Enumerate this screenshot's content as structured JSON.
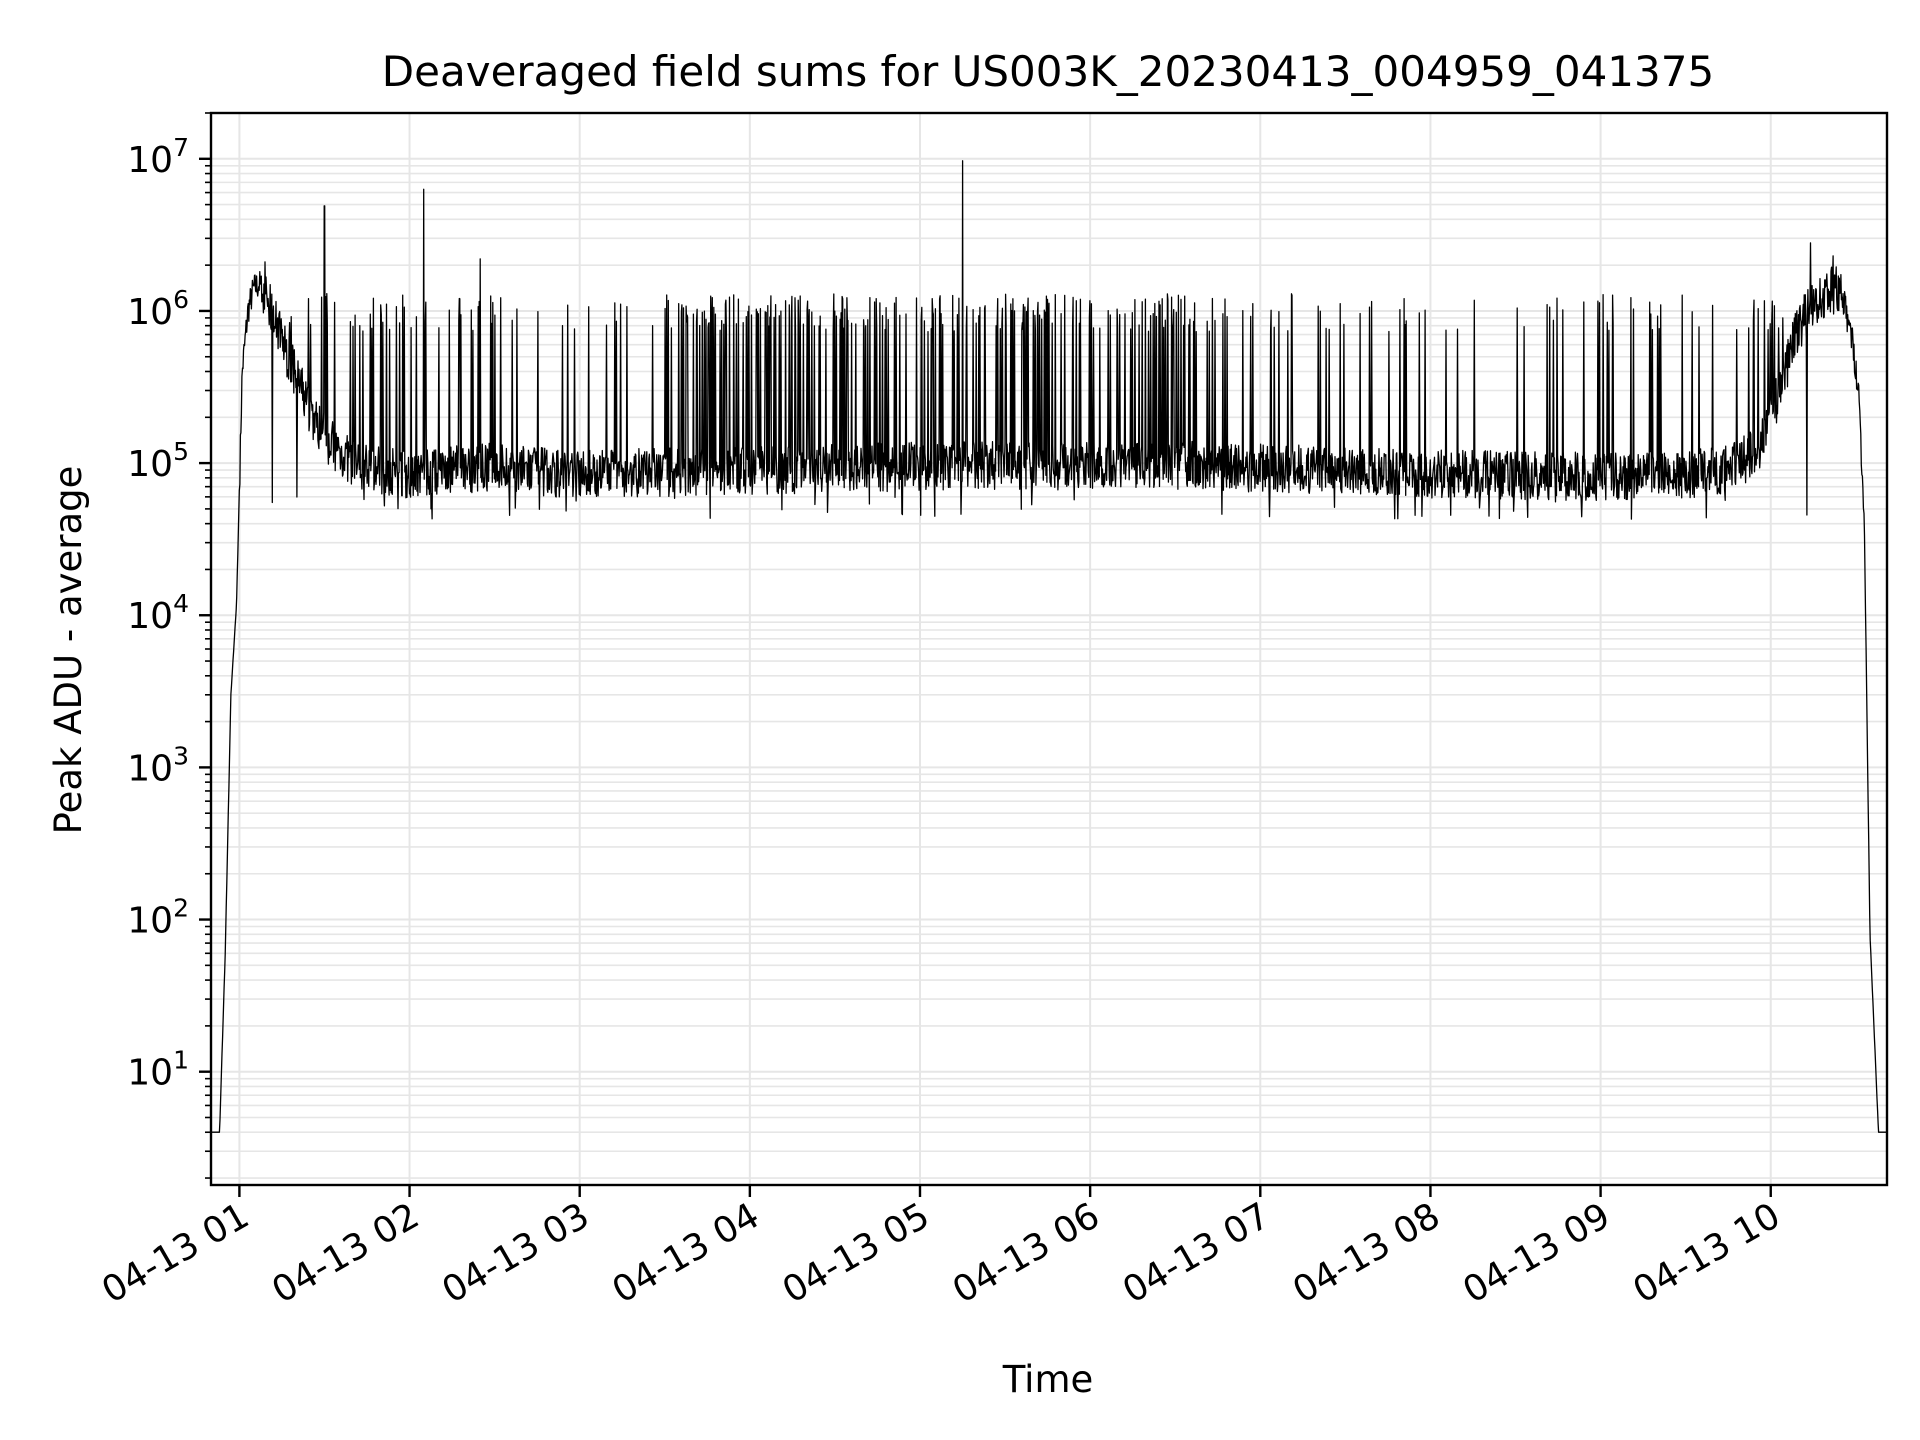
{
  "chart_data": {
    "type": "line",
    "title": "Deaveraged field sums for US003K_20230413_004959_041375",
    "xlabel": "Time",
    "ylabel": "Peak ADU - average",
    "y_scale": "log",
    "ylim": [
      1.8,
      20000000
    ],
    "xlim": [
      "04-13 00:49:59",
      "04-13 10:41:00"
    ],
    "grid": true,
    "x_ticks": [
      "04-13 01",
      "04-13 02",
      "04-13 03",
      "04-13 04",
      "04-13 05",
      "04-13 06",
      "04-13 07",
      "04-13 08",
      "04-13 09",
      "04-13 10"
    ],
    "y_ticks": [
      {
        "base": "10",
        "exp": "1"
      },
      {
        "base": "10",
        "exp": "2"
      },
      {
        "base": "10",
        "exp": "3"
      },
      {
        "base": "10",
        "exp": "4"
      },
      {
        "base": "10",
        "exp": "5"
      },
      {
        "base": "10",
        "exp": "6"
      },
      {
        "base": "10",
        "exp": "7"
      }
    ],
    "line_color": "#000000",
    "grid_color": "#e6e6e6",
    "series": [
      {
        "x": [
          "00:50",
          "00:53",
          "00:55",
          "00:57",
          "00:59",
          "01:01",
          "01:03",
          "01:05",
          "01:07",
          "01:09",
          "01:12",
          "01:15",
          "01:18",
          "01:22",
          "01:26",
          "01:30",
          "01:35",
          "01:40",
          "01:50",
          "02:00",
          "02:15",
          "02:30",
          "02:45",
          "03:00",
          "03:30",
          "04:00",
          "04:30",
          "05:00",
          "05:30",
          "06:00",
          "06:30",
          "07:00",
          "07:30",
          "08:00",
          "08:30",
          "09:00",
          "09:30",
          "09:45",
          "09:55",
          "10:00",
          "10:05",
          "10:10",
          "10:15",
          "10:20",
          "10:23",
          "10:26",
          "10:29",
          "10:31",
          "10:33",
          "10:35",
          "10:38",
          "10:41"
        ],
        "baseline": [
          4,
          4,
          60,
          3000,
          12000,
          400000,
          1000000,
          1400000,
          1500000,
          1300000,
          900000,
          650000,
          450000,
          300000,
          200000,
          150000,
          120000,
          100000,
          90000,
          85000,
          90000,
          95000,
          88000,
          85000,
          87000,
          90000,
          92000,
          95000,
          97000,
          95000,
          97000,
          93000,
          90000,
          85000,
          83000,
          82000,
          84000,
          90000,
          120000,
          200000,
          400000,
          800000,
          1100000,
          1300000,
          1400000,
          1100000,
          600000,
          300000,
          40000,
          80,
          4,
          4
        ],
        "spikes": [
          {
            "x": "01:09",
            "y": 2100000
          },
          {
            "x": "01:30",
            "y": 4900000
          },
          {
            "x": "02:05",
            "y": 6300000
          },
          {
            "x": "02:25",
            "y": 2200000
          },
          {
            "x": "05:15",
            "y": 9700000
          },
          {
            "x": "10:14",
            "y": 2800000
          },
          {
            "x": "10:22",
            "y": 2300000
          }
        ],
        "burst_peak": 1300000,
        "burst_floor": 60000
      }
    ]
  }
}
